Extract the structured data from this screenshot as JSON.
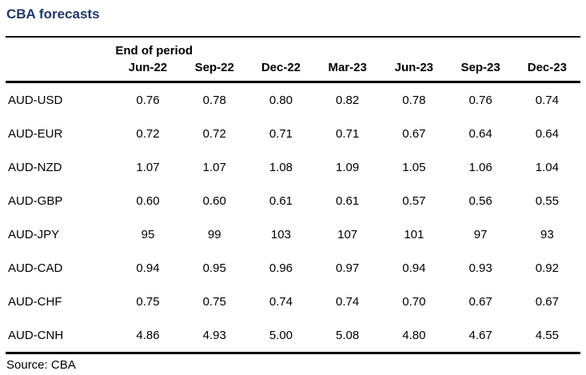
{
  "chart_data": {
    "type": "table",
    "title": "CBA forecasts",
    "period_header": "End of period",
    "columns": [
      "Jun-22",
      "Sep-22",
      "Dec-22",
      "Mar-23",
      "Jun-23",
      "Sep-23",
      "Dec-23"
    ],
    "rows": [
      {
        "label": "AUD-USD",
        "values": [
          "0.76",
          "0.78",
          "0.80",
          "0.82",
          "0.78",
          "0.76",
          "0.74"
        ]
      },
      {
        "label": "AUD-EUR",
        "values": [
          "0.72",
          "0.72",
          "0.71",
          "0.71",
          "0.67",
          "0.64",
          "0.64"
        ]
      },
      {
        "label": "AUD-NZD",
        "values": [
          "1.07",
          "1.07",
          "1.08",
          "1.09",
          "1.05",
          "1.06",
          "1.04"
        ]
      },
      {
        "label": "AUD-GBP",
        "values": [
          "0.60",
          "0.60",
          "0.61",
          "0.61",
          "0.57",
          "0.56",
          "0.55"
        ]
      },
      {
        "label": "AUD-JPY",
        "values": [
          "95",
          "99",
          "103",
          "107",
          "101",
          "97",
          "93"
        ]
      },
      {
        "label": "AUD-CAD",
        "values": [
          "0.94",
          "0.95",
          "0.96",
          "0.97",
          "0.94",
          "0.93",
          "0.92"
        ]
      },
      {
        "label": "AUD-CHF",
        "values": [
          "0.75",
          "0.75",
          "0.74",
          "0.74",
          "0.70",
          "0.67",
          "0.67"
        ]
      },
      {
        "label": "AUD-CNH",
        "values": [
          "4.86",
          "4.93",
          "5.00",
          "5.08",
          "4.80",
          "4.67",
          "4.55"
        ]
      }
    ],
    "source": "Source: CBA",
    "colors": {
      "title": "#1F3864",
      "text": "#000000",
      "rule": "#000000"
    }
  }
}
